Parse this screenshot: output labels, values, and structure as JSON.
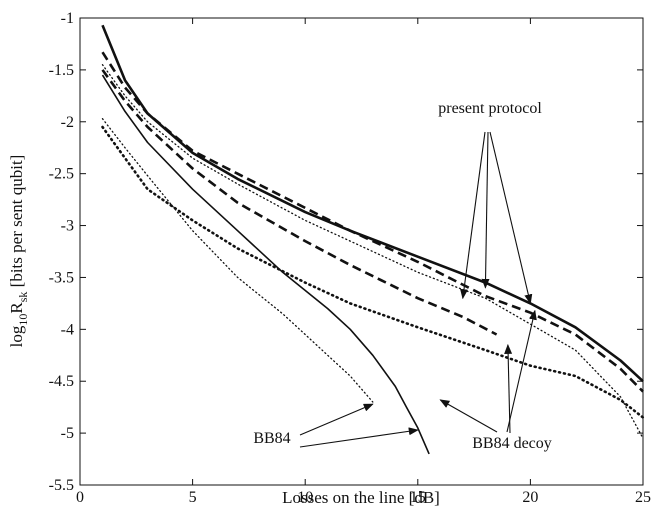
{
  "chart_data": {
    "type": "line",
    "title": "",
    "xlabel": "Losses on the line [dB]",
    "ylabel": {
      "prefix": "log",
      "sub1": "10",
      "mid": "R",
      "sub2": "sk",
      "suffix": " [bits per sent qubit]"
    },
    "xlim": [
      0,
      25
    ],
    "ylim": [
      -5.5,
      -1
    ],
    "xticks": [
      0,
      5,
      10,
      15,
      20,
      25
    ],
    "yticks": [
      -1,
      -1.5,
      -2,
      -2.5,
      -3,
      -3.5,
      -4,
      -4.5,
      -5,
      -5.5
    ],
    "xtick_labels": [
      "0",
      "5",
      "10",
      "15",
      "20",
      "25"
    ],
    "ytick_labels": [
      "-1",
      "-1.5",
      "-2",
      "-2.5",
      "-3",
      "-3.5",
      "-4",
      "-4.5",
      "-5",
      "-5.5"
    ],
    "grid": false,
    "legend": "none",
    "series": [
      {
        "style": "solid-thick",
        "points": [
          [
            1,
            -1.07
          ],
          [
            2,
            -1.6
          ],
          [
            3,
            -1.92
          ],
          [
            5,
            -2.3
          ],
          [
            7,
            -2.55
          ],
          [
            10,
            -2.87
          ],
          [
            12,
            -3.05
          ],
          [
            15,
            -3.3
          ],
          [
            18,
            -3.55
          ],
          [
            20,
            -3.75
          ],
          [
            22,
            -3.98
          ],
          [
            24,
            -4.3
          ],
          [
            25,
            -4.5
          ]
        ]
      },
      {
        "style": "dashed-thick",
        "points": [
          [
            1,
            -1.33
          ],
          [
            2,
            -1.67
          ],
          [
            3,
            -1.92
          ],
          [
            5,
            -2.28
          ],
          [
            7,
            -2.5
          ],
          [
            10,
            -2.83
          ],
          [
            12,
            -3.05
          ],
          [
            15,
            -3.35
          ],
          [
            18,
            -3.68
          ],
          [
            20,
            -3.84
          ],
          [
            22,
            -4.05
          ],
          [
            24,
            -4.38
          ],
          [
            25,
            -4.6
          ]
        ]
      },
      {
        "style": "dotted-thin",
        "points": [
          [
            1,
            -1.45
          ],
          [
            2,
            -1.75
          ],
          [
            3,
            -2.0
          ],
          [
            5,
            -2.35
          ],
          [
            7,
            -2.6
          ],
          [
            10,
            -2.95
          ],
          [
            12,
            -3.15
          ],
          [
            15,
            -3.45
          ],
          [
            18,
            -3.7
          ],
          [
            20,
            -3.95
          ],
          [
            22,
            -4.2
          ],
          [
            24,
            -4.65
          ],
          [
            25,
            -5.05
          ]
        ]
      },
      {
        "style": "dashed-thick",
        "points": [
          [
            1,
            -1.5
          ],
          [
            2,
            -1.8
          ],
          [
            3,
            -2.05
          ],
          [
            5,
            -2.45
          ],
          [
            7,
            -2.78
          ],
          [
            10,
            -3.15
          ],
          [
            12,
            -3.38
          ],
          [
            15,
            -3.7
          ],
          [
            17,
            -3.88
          ],
          [
            18.5,
            -4.05
          ]
        ]
      },
      {
        "style": "solid-thin",
        "points": [
          [
            1,
            -1.55
          ],
          [
            2,
            -1.9
          ],
          [
            3,
            -2.2
          ],
          [
            5,
            -2.65
          ],
          [
            7,
            -3.05
          ],
          [
            9,
            -3.45
          ],
          [
            11,
            -3.8
          ],
          [
            12,
            -4.0
          ],
          [
            13,
            -4.25
          ],
          [
            14,
            -4.55
          ],
          [
            14.5,
            -4.75
          ],
          [
            15,
            -4.95
          ],
          [
            15.5,
            -5.2
          ]
        ]
      },
      {
        "style": "dotted-thick",
        "points": [
          [
            1,
            -2.05
          ],
          [
            2,
            -2.35
          ],
          [
            3,
            -2.65
          ],
          [
            5,
            -2.95
          ],
          [
            7,
            -3.22
          ],
          [
            10,
            -3.55
          ],
          [
            12,
            -3.75
          ],
          [
            15,
            -3.98
          ],
          [
            18,
            -4.2
          ],
          [
            20,
            -4.35
          ],
          [
            22,
            -4.45
          ],
          [
            24,
            -4.68
          ],
          [
            25,
            -4.85
          ]
        ]
      },
      {
        "style": "dotted-thin",
        "points": [
          [
            1,
            -1.97
          ],
          [
            2,
            -2.25
          ],
          [
            3,
            -2.52
          ],
          [
            5,
            -3.05
          ],
          [
            7,
            -3.5
          ],
          [
            9,
            -3.85
          ],
          [
            10,
            -4.05
          ],
          [
            11,
            -4.25
          ],
          [
            12,
            -4.45
          ],
          [
            13,
            -4.7
          ]
        ]
      }
    ],
    "annotations": [
      {
        "text": "present protocol",
        "arrows_to": [
          [
            17,
            -3.7
          ],
          [
            18,
            -3.6
          ],
          [
            20,
            -3.75
          ]
        ]
      },
      {
        "text": "BB84",
        "arrows_to": [
          [
            13,
            -4.72
          ],
          [
            15,
            -4.97
          ]
        ]
      },
      {
        "text": "BB84 decoy",
        "arrows_to": [
          [
            19,
            -4.15
          ],
          [
            16,
            -4.68
          ],
          [
            20.2,
            -3.82
          ]
        ]
      }
    ]
  }
}
